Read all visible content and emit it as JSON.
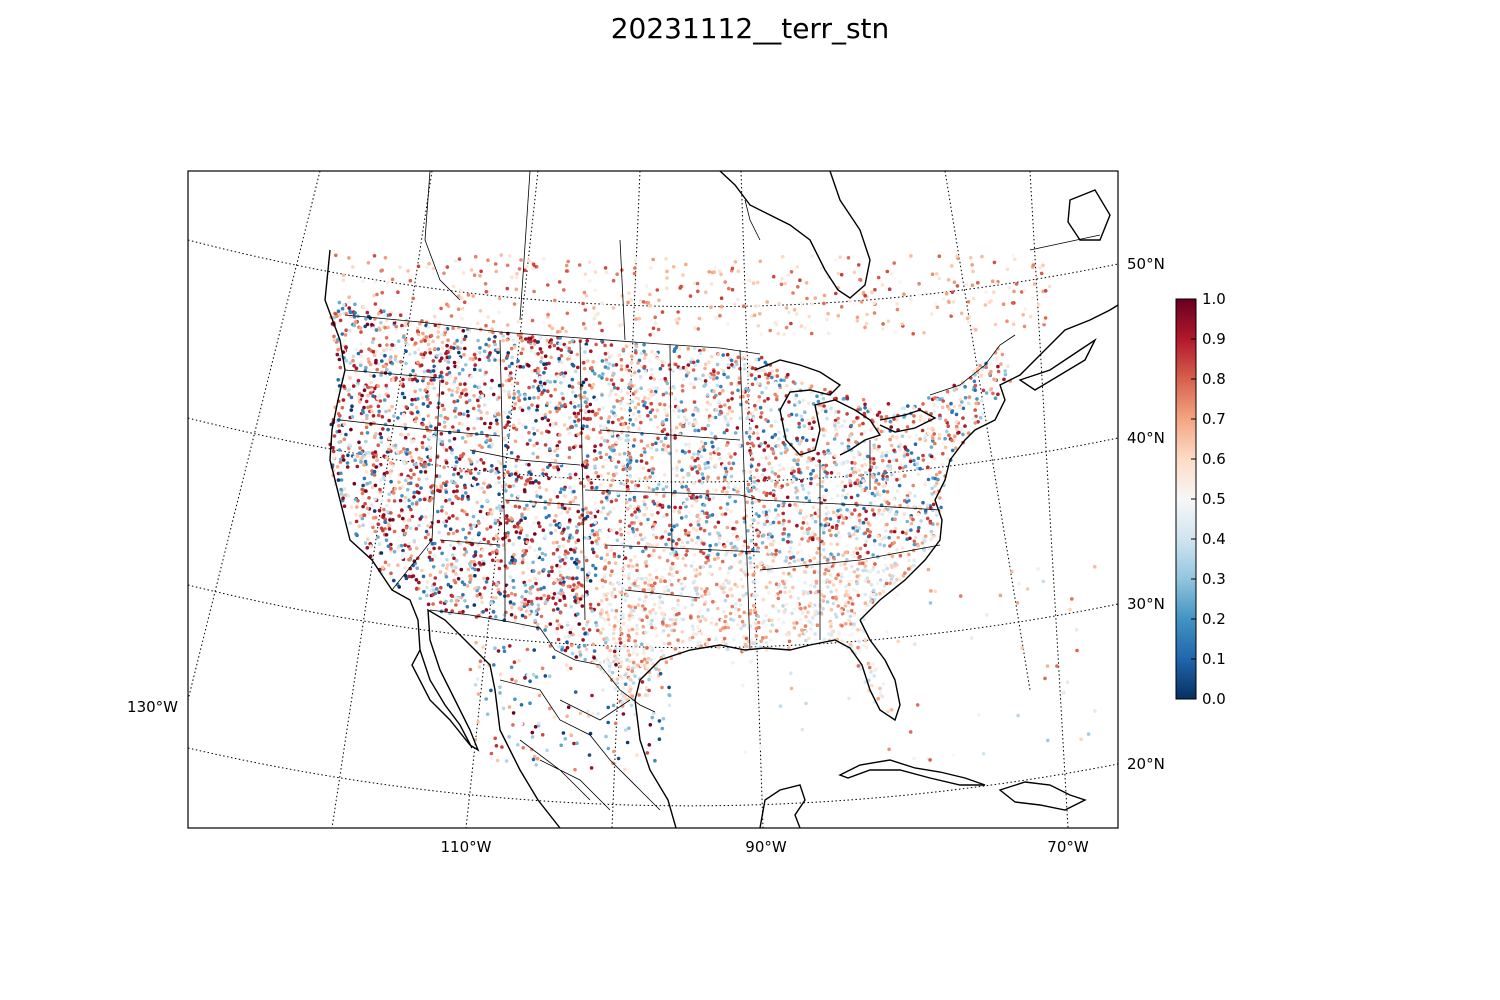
{
  "title": "20231112__terr_stn",
  "map": {
    "projection": "lambert-conformal",
    "meridians": [
      "110°W",
      "90°W",
      "70°W",
      "130°W"
    ],
    "parallels": [
      "50°N",
      "40°N",
      "30°N",
      "20°N"
    ],
    "colormap": "RdBu_r",
    "colorbar": {
      "min": 0.0,
      "max": 1.0,
      "ticks": [
        "0.0",
        "0.1",
        "0.2",
        "0.3",
        "0.4",
        "0.5",
        "0.6",
        "0.7",
        "0.8",
        "0.9",
        "1.0"
      ],
      "colors": [
        "#053061",
        "#2166ac",
        "#4393c3",
        "#92c5de",
        "#d1e5f0",
        "#f7f7f7",
        "#fddbc7",
        "#f4a582",
        "#d6604d",
        "#b2182b",
        "#67001f"
      ]
    }
  }
}
